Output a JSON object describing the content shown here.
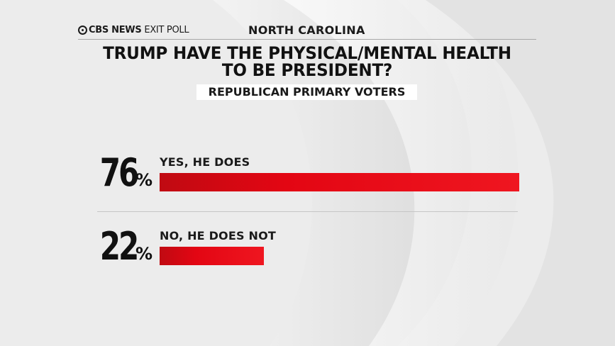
{
  "header": {
    "logo_brand": "CBS NEWS",
    "logo_sub": "EXIT POLL",
    "state": "NORTH CAROLINA"
  },
  "title": "TRUMP HAVE THE PHYSICAL/MENTAL HEALTH TO BE PRESIDENT?",
  "title_lines": [
    "TRUMP HAVE THE PHYSICAL/MENTAL HEALTH",
    "TO BE PRESIDENT?"
  ],
  "subtitle": "REPUBLICAN PRIMARY VOTERS",
  "colors": {
    "bar": "#e30613",
    "text": "#1a1a1a",
    "background": "#ededed"
  },
  "chart_data": {
    "type": "bar",
    "orientation": "horizontal",
    "title": "TRUMP HAVE THE PHYSICAL/MENTAL HEALTH TO BE PRESIDENT?",
    "subtitle": "REPUBLICAN PRIMARY VOTERS",
    "categories": [
      "YES, HE DOES",
      "NO, HE DOES NOT"
    ],
    "values": [
      76,
      22
    ],
    "value_labels": [
      "76",
      "22"
    ],
    "unit": "%",
    "xlim": [
      0,
      76
    ],
    "grid": false
  }
}
